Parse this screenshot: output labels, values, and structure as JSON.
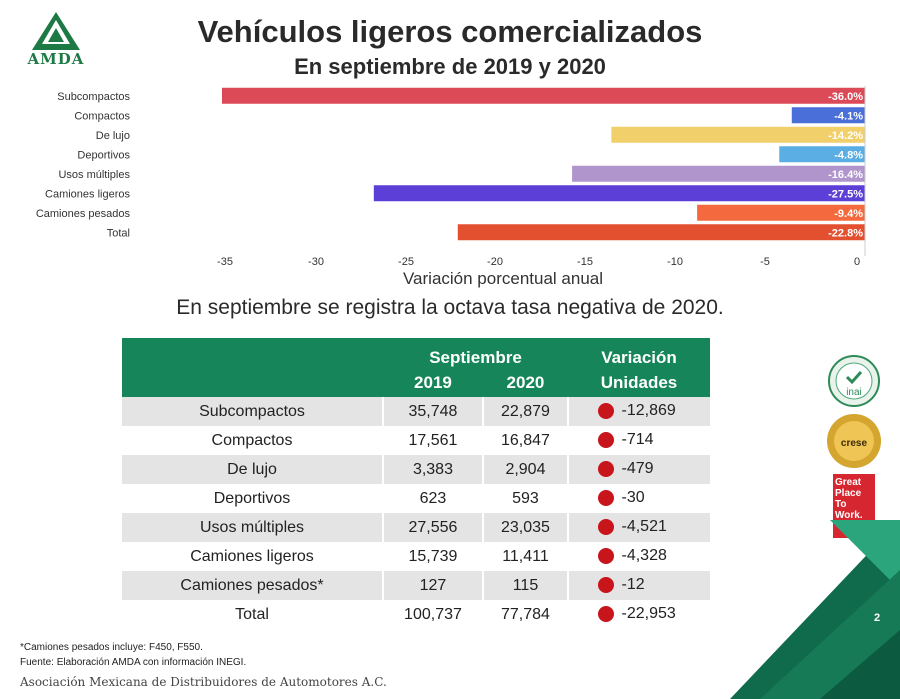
{
  "header": {
    "logo_text": "AMDA",
    "title": "Vehículos ligeros comercializados",
    "subtitle": "En septiembre de 2019 y 2020"
  },
  "chart_data": {
    "type": "bar",
    "orientation": "horizontal",
    "categories": [
      "Subcompactos",
      "Compactos",
      "De lujo",
      "Deportivos",
      "Usos múltiples",
      "Camiones ligeros",
      "Camiones pesados",
      "Total"
    ],
    "values": [
      -36.0,
      -4.1,
      -14.2,
      -4.8,
      -16.4,
      -27.5,
      -9.4,
      -22.8
    ],
    "value_labels": [
      "-36.0%",
      "-4.1%",
      "-14.2%",
      "-4.8%",
      "-16.4%",
      "-27.5%",
      "-9.4%",
      "-22.8%"
    ],
    "colors": [
      "#dc4a57",
      "#4a6fd8",
      "#f1cf6a",
      "#5aaee4",
      "#b095cc",
      "#5b3fd6",
      "#f46a3e",
      "#e2502f"
    ],
    "xlabel": "Variación porcentual anual",
    "xlim": [
      -35,
      0
    ],
    "xticks": [
      -35,
      -30,
      -25,
      -20,
      -15,
      -10,
      -5,
      0
    ],
    "grid": false
  },
  "headline": "En septiembre se registra la octava tasa negativa de 2020.",
  "table": {
    "group_header_months": "Septiembre",
    "group_header_variation": "Variación",
    "col_2019": "2019",
    "col_2020": "2020",
    "col_units": "Unidades",
    "rows": [
      {
        "category": "Subcompactos",
        "y2019": "35,748",
        "y2020": "22,879",
        "delta": "-12,869"
      },
      {
        "category": "Compactos",
        "y2019": "17,561",
        "y2020": "16,847",
        "delta": "-714"
      },
      {
        "category": "De lujo",
        "y2019": "3,383",
        "y2020": "2,904",
        "delta": "-479"
      },
      {
        "category": "Deportivos",
        "y2019": "623",
        "y2020": "593",
        "delta": "-30"
      },
      {
        "category": "Usos múltiples",
        "y2019": "27,556",
        "y2020": "23,035",
        "delta": "-4,521"
      },
      {
        "category": "Camiones ligeros",
        "y2019": "15,739",
        "y2020": "11,411",
        "delta": "-4,328"
      },
      {
        "category": "Camiones pesados*",
        "y2019": "127",
        "y2020": "115",
        "delta": "-12"
      },
      {
        "category": "Total",
        "y2019": "100,737",
        "y2020": "77,784",
        "delta": "-22,953"
      }
    ]
  },
  "badges": {
    "inai": "inai",
    "crese": "crese",
    "gptw": "Great Place To Work."
  },
  "notes": {
    "footnote": "*Camiones pesados incluye: F450, F550.",
    "source": "Fuente: Elaboración AMDA con información INEGI."
  },
  "footer": {
    "org": "Asociación Mexicana de Distribuidores de Automotores A.C.",
    "page": "2"
  }
}
